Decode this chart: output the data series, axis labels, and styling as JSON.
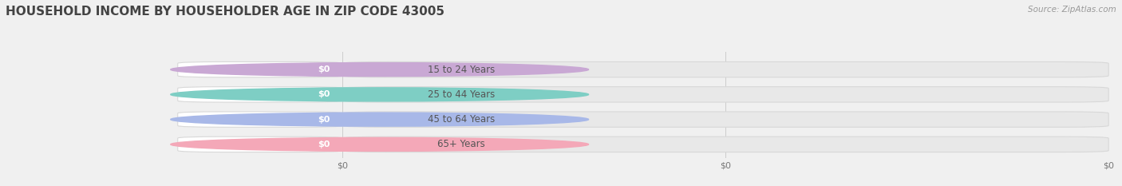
{
  "title": "HOUSEHOLD INCOME BY HOUSEHOLDER AGE IN ZIP CODE 43005",
  "source": "Source: ZipAtlas.com",
  "categories": [
    "15 to 24 Years",
    "25 to 44 Years",
    "45 to 64 Years",
    "65+ Years"
  ],
  "values": [
    0,
    0,
    0,
    0
  ],
  "bar_colors": [
    "#c9a8d4",
    "#7ecec4",
    "#a8b8e8",
    "#f4a8b8"
  ],
  "background_color": "#f0f0f0",
  "bar_bg_color": "#e8e8e8",
  "title_fontsize": 11,
  "label_fontsize": 8.5,
  "value_fontsize": 8,
  "source_fontsize": 7.5,
  "xtick_labels": [
    "$0",
    "$0",
    "$0"
  ],
  "xtick_positions": [
    0.0,
    0.5,
    1.0
  ]
}
